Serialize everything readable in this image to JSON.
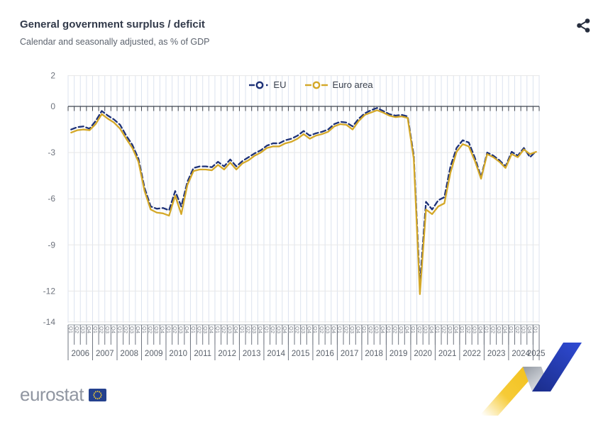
{
  "header": {
    "title": "General government surplus / deficit",
    "subtitle": "Calendar and seasonally adjusted, as % of GDP",
    "share_icon": "share-nodes-icon"
  },
  "legend": {
    "items": [
      {
        "label": "EU",
        "color": "#1e3278",
        "line_style": "dashed"
      },
      {
        "label": "Euro area",
        "color": "#d4a828",
        "line_style": "solid"
      }
    ]
  },
  "chart_data": {
    "type": "line",
    "title": "General government surplus / deficit",
    "subtitle": "Calendar and seasonally adjusted, as % of GDP",
    "ylabel": "% of GDP",
    "ylim": [
      -14.3,
      2
    ],
    "yticks": [
      2,
      0,
      -3,
      -6,
      -9,
      -12,
      -14
    ],
    "grid": true,
    "legend_position": "top-center",
    "x_labels": {
      "quarter_labels": [
        "Q1",
        "Q2",
        "Q3",
        "Q4"
      ],
      "years": [
        2006,
        2007,
        2008,
        2009,
        2010,
        2011,
        2012,
        2013,
        2014,
        2015,
        2016,
        2017,
        2018,
        2019,
        2020,
        2021,
        2022,
        2023,
        2024,
        2025
      ],
      "last_year_quarter_count": 1
    },
    "series": [
      {
        "name": "EU",
        "color": "#1e3278",
        "dash": "7 4",
        "values": [
          -1.5,
          -1.35,
          -1.3,
          -1.45,
          -0.95,
          -0.3,
          -0.6,
          -0.85,
          -1.2,
          -1.9,
          -2.5,
          -3.4,
          -5.3,
          -6.5,
          -6.65,
          -6.6,
          -6.75,
          -5.5,
          -6.5,
          -4.9,
          -4.0,
          -3.9,
          -3.9,
          -3.95,
          -3.6,
          -3.9,
          -3.45,
          -3.9,
          -3.55,
          -3.3,
          -3.05,
          -2.85,
          -2.55,
          -2.4,
          -2.4,
          -2.2,
          -2.1,
          -1.9,
          -1.6,
          -1.9,
          -1.75,
          -1.65,
          -1.5,
          -1.15,
          -1.0,
          -1.05,
          -1.3,
          -0.8,
          -0.45,
          -0.25,
          -0.1,
          -0.3,
          -0.5,
          -0.6,
          -0.55,
          -0.65,
          -3.2,
          -11.6,
          -6.2,
          -6.7,
          -6.1,
          -5.9,
          -3.9,
          -2.7,
          -2.2,
          -2.35,
          -3.35,
          -4.6,
          -3.0,
          -3.2,
          -3.5,
          -3.9,
          -2.95,
          -3.2,
          -2.7,
          -3.3,
          -2.9
        ]
      },
      {
        "name": "Euro area",
        "color": "#d4a828",
        "dash": null,
        "values": [
          -1.7,
          -1.55,
          -1.5,
          -1.55,
          -1.15,
          -0.5,
          -0.8,
          -1.05,
          -1.45,
          -2.1,
          -2.7,
          -3.6,
          -5.5,
          -6.7,
          -6.9,
          -6.95,
          -7.1,
          -5.8,
          -7.0,
          -5.1,
          -4.2,
          -4.1,
          -4.1,
          -4.15,
          -3.8,
          -4.1,
          -3.65,
          -4.1,
          -3.7,
          -3.5,
          -3.2,
          -3.0,
          -2.7,
          -2.6,
          -2.6,
          -2.4,
          -2.3,
          -2.1,
          -1.8,
          -2.1,
          -1.9,
          -1.8,
          -1.65,
          -1.3,
          -1.15,
          -1.2,
          -1.5,
          -0.95,
          -0.55,
          -0.4,
          -0.25,
          -0.4,
          -0.6,
          -0.7,
          -0.65,
          -0.75,
          -3.4,
          -12.2,
          -6.7,
          -7.0,
          -6.5,
          -6.3,
          -4.3,
          -2.95,
          -2.45,
          -2.6,
          -3.55,
          -4.7,
          -3.1,
          -3.3,
          -3.6,
          -4.0,
          -3.1,
          -3.3,
          -2.8,
          -3.1,
          -2.95
        ]
      }
    ]
  },
  "footer": {
    "logo_text": "eurostat",
    "flag_color": "#24418e",
    "star_color": "#f8d12e"
  }
}
